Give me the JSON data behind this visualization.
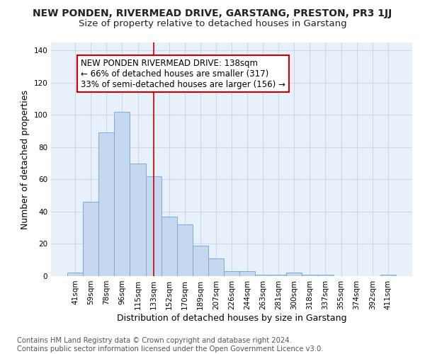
{
  "title": "NEW PONDEN, RIVERMEAD DRIVE, GARSTANG, PRESTON, PR3 1JJ",
  "subtitle": "Size of property relative to detached houses in Garstang",
  "xlabel": "Distribution of detached houses by size in Garstang",
  "ylabel": "Number of detached properties",
  "footer_line1": "Contains HM Land Registry data © Crown copyright and database right 2024.",
  "footer_line2": "Contains public sector information licensed under the Open Government Licence v3.0.",
  "categories": [
    "41sqm",
    "59sqm",
    "78sqm",
    "96sqm",
    "115sqm",
    "133sqm",
    "152sqm",
    "170sqm",
    "189sqm",
    "207sqm",
    "226sqm",
    "244sqm",
    "263sqm",
    "281sqm",
    "300sqm",
    "318sqm",
    "337sqm",
    "355sqm",
    "374sqm",
    "392sqm",
    "411sqm"
  ],
  "values": [
    2,
    46,
    89,
    102,
    70,
    62,
    37,
    32,
    19,
    11,
    3,
    3,
    1,
    1,
    2,
    1,
    1,
    0,
    0,
    0,
    1
  ],
  "bar_color": "#c5d8f0",
  "bar_edge_color": "#7aabdb",
  "vline_x": 5,
  "vline_color": "#cc0000",
  "annotation_line1": "NEW PONDEN RIVERMEAD DRIVE: 138sqm",
  "annotation_line2": "← 66% of detached houses are smaller (317)",
  "annotation_line3": "33% of semi-detached houses are larger (156) →",
  "ylim": [
    0,
    145
  ],
  "yticks": [
    0,
    20,
    40,
    60,
    80,
    100,
    120,
    140
  ],
  "background_color": "#e8f0fa",
  "grid_color": "#d0d8e8",
  "title_fontsize": 10,
  "subtitle_fontsize": 9.5,
  "axis_label_fontsize": 9,
  "tick_fontsize": 7.5,
  "footer_fontsize": 7.2,
  "ann_fontsize": 8.5
}
